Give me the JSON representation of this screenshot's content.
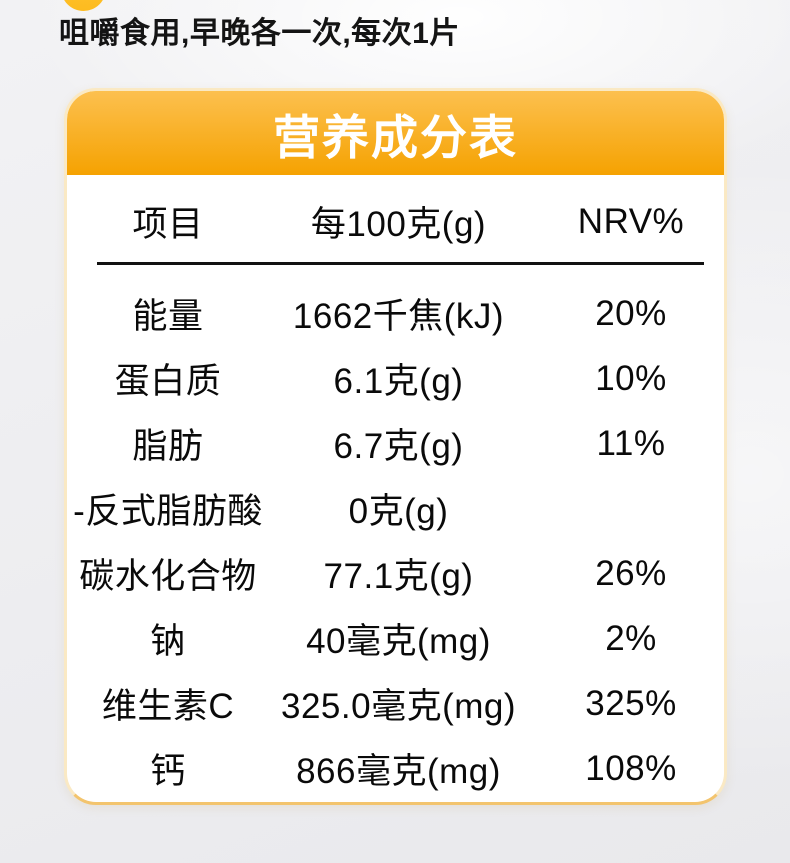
{
  "page": {
    "instruction_text": "咀嚼食用,早晚各一次,每次1片"
  },
  "nutrition_card": {
    "title": "营养成分表",
    "columns": [
      "项目",
      "每100克(g)",
      "NRV%"
    ],
    "rows": [
      {
        "item": "能量",
        "per_100g": "1662千焦(kJ)",
        "nrv": "20%"
      },
      {
        "item": "蛋白质",
        "per_100g": "6.1克(g)",
        "nrv": "10%"
      },
      {
        "item": "脂肪",
        "per_100g": "6.7克(g)",
        "nrv": "11%"
      },
      {
        "item": "-反式脂肪酸",
        "per_100g": "0克(g)",
        "nrv": ""
      },
      {
        "item": "碳水化合物",
        "per_100g": "77.1克(g)",
        "nrv": "26%"
      },
      {
        "item": "钠",
        "per_100g": "40毫克(mg)",
        "nrv": "2%"
      },
      {
        "item": "维生素C",
        "per_100g": "325.0毫克(mg)",
        "nrv": "325%"
      },
      {
        "item": "钙",
        "per_100g": "866毫克(mg)",
        "nrv": "108%"
      }
    ],
    "colors": {
      "banner_top": "#FCC04F",
      "banner_bottom": "#F5A201",
      "card_border": "#FAE9C4",
      "card_border_bottom": "#F3C46D",
      "title_text": "#FFFFFF",
      "table_text": "#0A0A0A",
      "bullet_yellow": "#FFC636"
    }
  }
}
